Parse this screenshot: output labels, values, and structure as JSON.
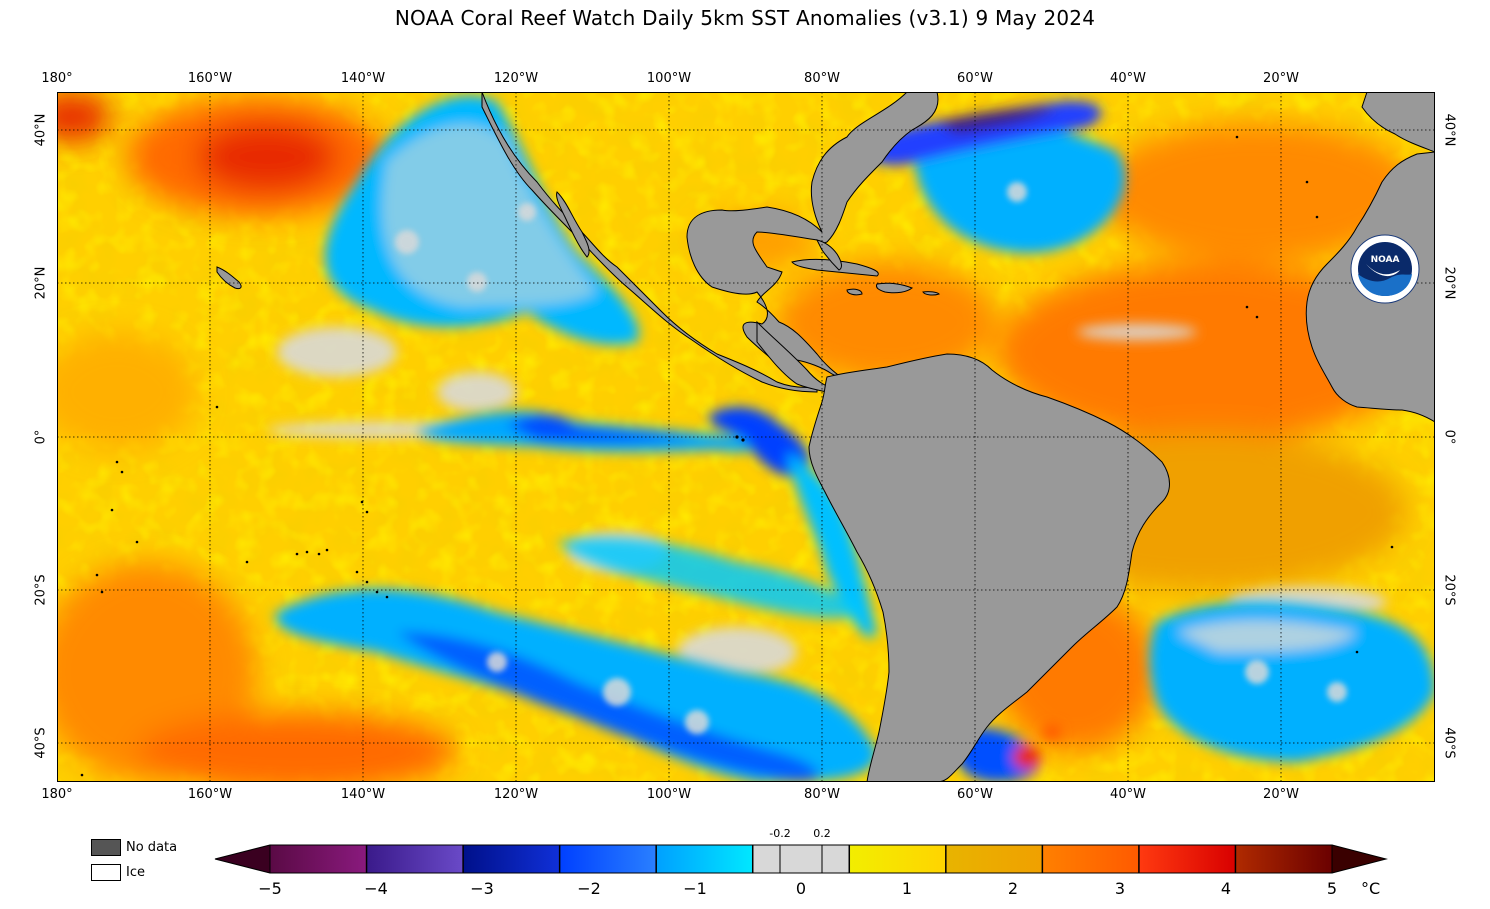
{
  "title": "NOAA Coral Reef Watch Daily 5km SST Anomalies  (v3.1)   9 May 2024",
  "longitude_labels": [
    "180°",
    "160°W",
    "140°W",
    "120°W",
    "100°W",
    "80°W",
    "60°W",
    "40°W",
    "20°W"
  ],
  "latitude_labels_left": [
    "40°N",
    "20°N",
    "0°",
    "20°S",
    "40°S"
  ],
  "latitude_labels_right": [
    "40°N",
    "20°N",
    "0°",
    "20°S",
    "40°S"
  ],
  "legend": {
    "no_data": "No data",
    "ice": "Ice",
    "no_data_color": "#555555",
    "ice_color": "#ffffff"
  },
  "colorbar": {
    "ticks": [
      "−5",
      "−4",
      "−3",
      "−2",
      "−1",
      "0",
      "1",
      "2",
      "3",
      "4",
      "5"
    ],
    "small_ticks": [
      "-0.2",
      "0.2"
    ],
    "unit": "°C",
    "segments": [
      [
        "#5a0a45",
        "#8a1a7e"
      ],
      [
        "#3a1a8a",
        "#6a4ac8"
      ],
      [
        "#00108a",
        "#1030d8"
      ],
      [
        "#0040ff",
        "#2a80ff"
      ],
      [
        "#00a0ff",
        "#00e8ff"
      ],
      [
        "#d8d8d8",
        "#d8d8d8"
      ],
      [
        "#f2ee00",
        "#ffd400"
      ],
      [
        "#e8b400",
        "#f0a000"
      ],
      [
        "#ff8000",
        "#ff5a00"
      ],
      [
        "#ff3a10",
        "#d80000"
      ],
      [
        "#b02a00",
        "#6a0000"
      ]
    ],
    "left_arrow_color": "#3a0020",
    "right_arrow_color": "#3a0000"
  },
  "colors": {
    "land": "#999999",
    "coast": "#000000",
    "grid": "#000000"
  },
  "logo": {
    "name": "noaa-logo",
    "text": "NOAA"
  }
}
